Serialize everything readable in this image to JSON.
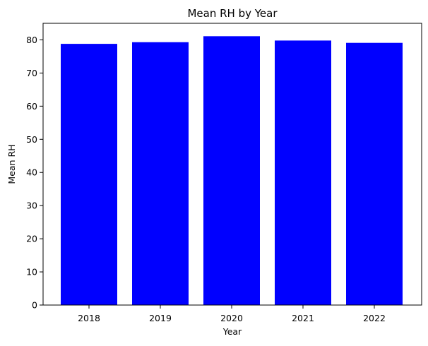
{
  "chart_data": {
    "type": "bar",
    "title": "Mean RH by Year",
    "xlabel": "Year",
    "ylabel": "Mean RH",
    "categories": [
      "2018",
      "2019",
      "2020",
      "2021",
      "2022"
    ],
    "values": [
      78.8,
      79.3,
      81.1,
      79.8,
      79.1
    ],
    "ylim": [
      0,
      85
    ],
    "yticks": [
      0,
      10,
      20,
      30,
      40,
      50,
      60,
      70,
      80
    ],
    "bar_color": "#0000ff",
    "grid": false,
    "legend": "none"
  }
}
